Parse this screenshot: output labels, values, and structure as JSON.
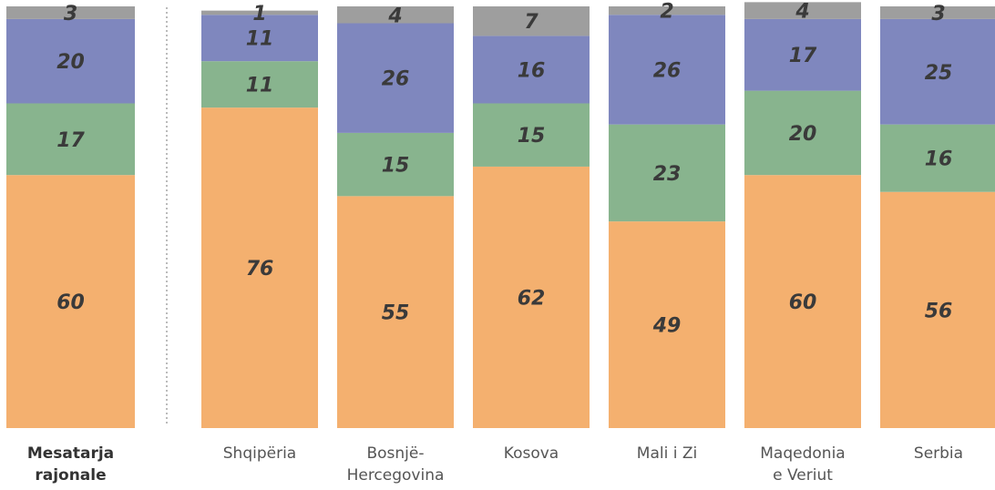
{
  "chart_data": {
    "type": "stacked-bar",
    "categories": [
      "Mesatarja\nrajonale",
      "Shqipëria",
      "Bosnjë-\nHercegovina",
      "Kosova",
      "Mali i Zi",
      "Maqedonia\ne Veriut",
      "Serbia"
    ],
    "series": [
      {
        "color": "#f4b06f",
        "values": [
          60,
          76,
          55,
          62,
          49,
          60,
          56
        ]
      },
      {
        "color": "#88b48e",
        "values": [
          17,
          11,
          15,
          15,
          23,
          20,
          16
        ]
      },
      {
        "color": "#7f87be",
        "values": [
          20,
          11,
          26,
          16,
          26,
          17,
          25
        ]
      },
      {
        "color": "#9e9e9e",
        "values": [
          3,
          1,
          4,
          7,
          2,
          4,
          3
        ]
      }
    ],
    "ylim": [
      0,
      100
    ]
  }
}
